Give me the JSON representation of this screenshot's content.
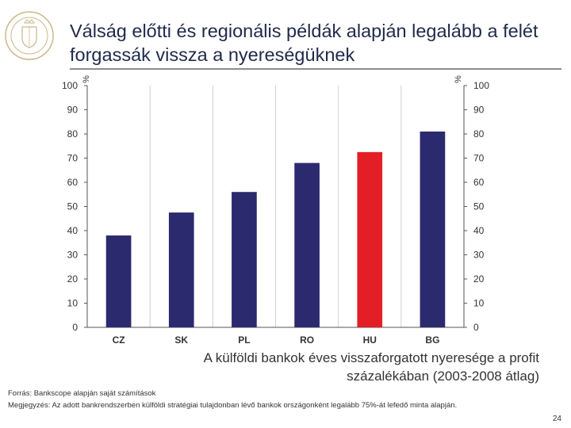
{
  "header": {
    "title": "Válság előtti és regionális példák alapján legalább a felét forgassák vissza a nyereségüknek"
  },
  "chart_data": {
    "type": "bar",
    "categories": [
      "CZ",
      "SK",
      "PL",
      "RO",
      "HU",
      "BG"
    ],
    "values": [
      38,
      47.5,
      56,
      68,
      72.5,
      81
    ],
    "highlight_category": "HU",
    "bar_color": "#2b2a6e",
    "highlight_color": "#e41e26",
    "left_axis_label": "%",
    "right_axis_label": "%",
    "ylim": [
      0,
      100
    ],
    "yticks": [
      0,
      10,
      20,
      30,
      40,
      50,
      60,
      70,
      80,
      90,
      100
    ],
    "grid": "vertical separators",
    "title": "A külföldi bankok éves visszaforgatott nyeresége a profit százalékában (2003-2008 átlag)"
  },
  "footer": {
    "source": "Forrás: Bankscope alapján saját számítások",
    "note": "Megjegyzés: Az adott bankrendszerben külföldi stratégiai tulajdonban lévő bankok országonként legalább 75%-át lefedő minta alapján.",
    "page_number": "24"
  }
}
